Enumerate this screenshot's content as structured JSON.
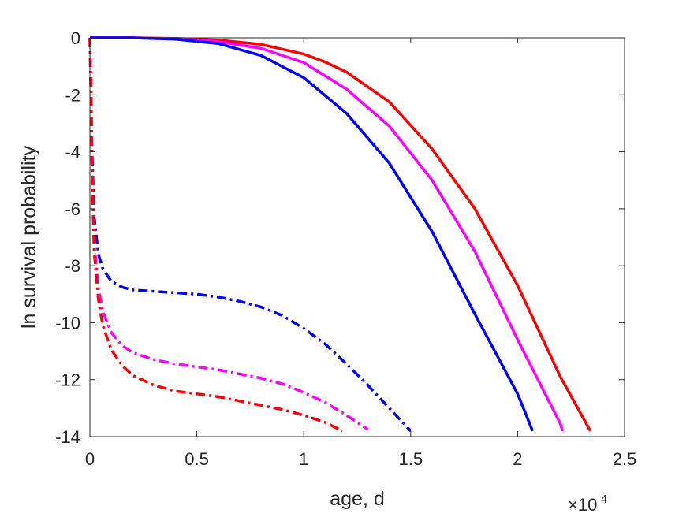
{
  "chart_data": {
    "type": "line",
    "title": "",
    "xlabel": "age, d",
    "ylabel": "ln survival probability",
    "x_exponent_label": {
      "base": "×10",
      "exponent": "4"
    },
    "xlim": [
      0,
      25000
    ],
    "ylim": [
      -14,
      0
    ],
    "x_ticks": [
      0,
      5000,
      10000,
      15000,
      20000,
      25000
    ],
    "x_tick_labels": [
      "0",
      "0.5",
      "1",
      "1.5",
      "2",
      "2.5"
    ],
    "y_ticks": [
      0,
      -2,
      -4,
      -6,
      -8,
      -10,
      -12,
      -14
    ],
    "y_tick_labels": [
      "0",
      "-2",
      "-4",
      "-6",
      "-8",
      "-10",
      "-12",
      "-14"
    ],
    "grid": false,
    "series": [
      {
        "color": "#ff0000",
        "style": "solid",
        "x": [
          0,
          2000,
          4000,
          6000,
          8000,
          10000,
          11000,
          12000,
          14000,
          16000,
          18000,
          20000,
          22000,
          23400
        ],
        "y": [
          0,
          0,
          -0.02,
          -0.08,
          -0.23,
          -0.57,
          -0.85,
          -1.2,
          -2.25,
          -3.9,
          -6.0,
          -8.7,
          -11.9,
          -13.8
        ]
      },
      {
        "color": "#ff00ff",
        "style": "solid",
        "x": [
          0,
          2000,
          4000,
          6000,
          8000,
          10000,
          12000,
          14000,
          16000,
          18000,
          20000,
          22000,
          22100
        ],
        "y": [
          0,
          0,
          -0.03,
          -0.13,
          -0.37,
          -0.87,
          -1.8,
          -3.1,
          -5.0,
          -7.5,
          -10.6,
          -13.55,
          -13.8
        ]
      },
      {
        "color": "#0000ff",
        "style": "solid",
        "x": [
          0,
          2000,
          4000,
          6000,
          8000,
          10000,
          12000,
          14000,
          16000,
          18000,
          20000,
          20700
        ],
        "y": [
          0,
          0,
          -0.05,
          -0.2,
          -0.62,
          -1.4,
          -2.65,
          -4.4,
          -6.8,
          -9.7,
          -12.5,
          -13.8
        ]
      },
      {
        "color": "#0000ff",
        "style": "dashdot",
        "x": [
          0,
          50,
          100,
          200,
          400,
          600,
          1000,
          1500,
          2000,
          3000,
          4000,
          5000,
          6000,
          7000,
          8000,
          9000,
          10000,
          11000,
          12000,
          13000,
          14000,
          15000
        ],
        "y": [
          0,
          -2,
          -4,
          -6.3,
          -7.6,
          -8.1,
          -8.55,
          -8.75,
          -8.85,
          -8.9,
          -8.95,
          -9.0,
          -9.1,
          -9.25,
          -9.45,
          -9.75,
          -10.2,
          -10.75,
          -11.45,
          -12.2,
          -13.0,
          -13.8
        ]
      },
      {
        "color": "#ff00ff",
        "style": "dashdot",
        "x": [
          0,
          50,
          100,
          200,
          400,
          600,
          1000,
          1500,
          2000,
          3000,
          4000,
          5000,
          6000,
          7000,
          8000,
          9000,
          10000,
          11000,
          12000,
          13000
        ],
        "y": [
          0,
          -2,
          -4.5,
          -7.2,
          -8.8,
          -9.6,
          -10.35,
          -10.8,
          -11.05,
          -11.3,
          -11.45,
          -11.55,
          -11.65,
          -11.8,
          -11.95,
          -12.15,
          -12.45,
          -12.8,
          -13.25,
          -13.75
        ]
      },
      {
        "color": "#ff0000",
        "style": "dashdot",
        "x": [
          0,
          50,
          100,
          200,
          400,
          600,
          1000,
          1500,
          2000,
          3000,
          4000,
          5000,
          6000,
          7000,
          8000,
          9000,
          10000,
          11000,
          11800
        ],
        "y": [
          0,
          -2,
          -4.7,
          -7.5,
          -9.2,
          -10.1,
          -10.95,
          -11.5,
          -11.85,
          -12.2,
          -12.4,
          -12.5,
          -12.6,
          -12.75,
          -12.9,
          -13.05,
          -13.25,
          -13.5,
          -13.8
        ]
      }
    ]
  }
}
